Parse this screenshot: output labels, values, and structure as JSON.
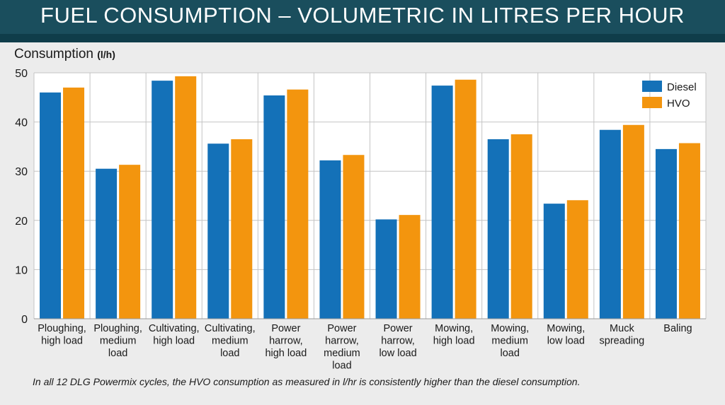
{
  "header": {
    "title": "FUEL CONSUMPTION – VOLUMETRIC IN LITRES PER HOUR"
  },
  "colors": {
    "diesel": "#1471b8",
    "hvo": "#f3950e",
    "banner": "#1a4e5d"
  },
  "chart_data": {
    "type": "bar",
    "ylabel": "Consumption",
    "yunit": "(l/h)",
    "ylim": [
      0,
      50
    ],
    "yticks": [
      "0",
      "10",
      "20",
      "30",
      "40",
      "50"
    ],
    "grid": true,
    "legend_position": "top-right",
    "categories": [
      "Ploughing,\nhigh load",
      "Ploughing,\nmedium\nload",
      "Cultivating,\nhigh load",
      "Cultivating,\nmedium\nload",
      "Power\nharrow,\nhigh load",
      "Power\nharrow,\nmedium\nload",
      "Power\nharrow,\nlow load",
      "Mowing,\nhigh load",
      "Mowing,\nmedium\nload",
      "Mowing,\nlow load",
      "Muck\nspreading",
      "Baling"
    ],
    "series": [
      {
        "name": "Diesel",
        "values": [
          46.0,
          30.5,
          48.4,
          35.6,
          45.4,
          32.2,
          20.2,
          47.4,
          36.5,
          23.4,
          38.4,
          34.5
        ]
      },
      {
        "name": "HVO",
        "values": [
          47.0,
          31.3,
          49.3,
          36.5,
          46.6,
          33.3,
          21.1,
          48.6,
          37.5,
          24.1,
          39.4,
          35.7
        ]
      }
    ]
  },
  "caption": "In all 12 DLG Powermix cycles, the HVO consumption as measured in l/hr is consistently higher than the diesel consumption."
}
